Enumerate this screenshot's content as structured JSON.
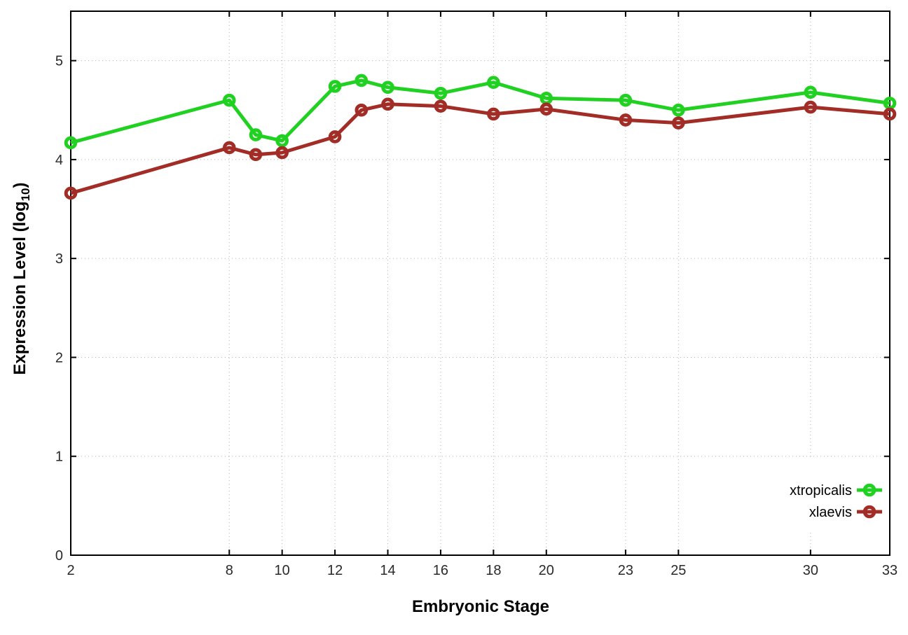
{
  "chart_data": {
    "type": "line",
    "title": "",
    "xlabel": "Embryonic Stage",
    "ylabel": "Expression Level (log10)",
    "ylabel_parts": {
      "prefix": "Expression Level (log",
      "sub": "10",
      "suffix": ")"
    },
    "x": [
      2,
      8,
      9,
      10,
      12,
      13,
      14,
      16,
      18,
      20,
      23,
      25,
      30,
      33
    ],
    "series": [
      {
        "name": "xtropicalis",
        "color": "#21d121",
        "values": [
          4.17,
          4.6,
          4.25,
          4.19,
          4.74,
          4.8,
          4.73,
          4.67,
          4.78,
          4.62,
          4.6,
          4.5,
          4.68,
          4.57
        ]
      },
      {
        "name": "xlaevis",
        "color": "#a12d26",
        "values": [
          3.66,
          4.12,
          4.05,
          4.07,
          4.23,
          4.5,
          4.56,
          4.54,
          4.46,
          4.51,
          4.4,
          4.37,
          4.53,
          4.46
        ]
      }
    ],
    "xticks": [
      2,
      8,
      10,
      12,
      14,
      16,
      18,
      20,
      23,
      25,
      30,
      33
    ],
    "yticks": [
      0,
      1,
      2,
      3,
      4,
      5
    ],
    "xlim": [
      2,
      33
    ],
    "ylim": [
      0,
      5.5
    ],
    "grid": true,
    "marker": "open-circle",
    "legend_position": "inside-right-lower"
  },
  "colors": {
    "background": "#ffffff",
    "axis": "#000000",
    "grid": "#b0b0b0",
    "tick_label": "#2a2a2a",
    "legend_background": "#ffffff"
  }
}
